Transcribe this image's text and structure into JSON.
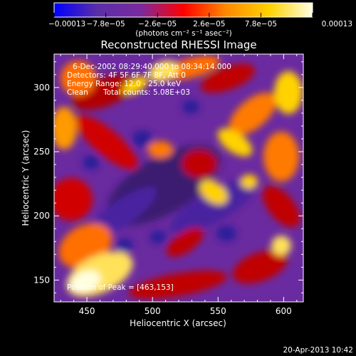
{
  "colors": {
    "background": "#000000",
    "foreground": "#ffffff",
    "colormap": [
      "#0000ff",
      "#5b2ea8",
      "#7a2aa0",
      "#ff0000",
      "#ff8a00",
      "#ffd200",
      "#ffffe6"
    ]
  },
  "colorbar": {
    "min": -0.00013,
    "max": 0.00013,
    "tick_values": [
      -0.00013,
      -7.8e-05,
      -2.6e-05,
      2.6e-05,
      7.8e-05,
      0.00013
    ],
    "tick_labels": [
      "−0.00013",
      "−7.8e−05",
      "−2.6e−05",
      "2.6e−05",
      "7.8e−05",
      "0.00013"
    ],
    "units": "(photons cm⁻² s⁻¹ asec⁻²)"
  },
  "chart_data": {
    "type": "heatmap",
    "title": "Reconstructed RHESSI Image",
    "xlabel": "Heliocentric X (arcsec)",
    "ylabel": "Heliocentric Y (arcsec)",
    "xlim": [
      425,
      615
    ],
    "ylim": [
      133,
      326
    ],
    "x_ticks": [
      450,
      500,
      550,
      600
    ],
    "y_ticks": [
      150,
      200,
      250,
      300
    ],
    "x_tick_labels": [
      "450",
      "500",
      "550",
      "600"
    ],
    "y_tick_labels": [
      "150",
      "200",
      "250",
      "300"
    ],
    "peak_position": [
      463,
      153
    ],
    "annotations": {
      "time_range": "6-Dec-2002 08:29:40.000 to 08:34:14.000",
      "detectors": "Detectors: 4F 5F 6F 7F 8F, Att 0",
      "energy": "Energy Range: 12.0 - 25.0 keV",
      "clean": "Clean",
      "total_counts": "Total counts: 5.08E+03",
      "peak": "Position of Peak = [463,153]"
    }
  },
  "footer": {
    "timestamp": "20-Apr-2013 10:42"
  }
}
